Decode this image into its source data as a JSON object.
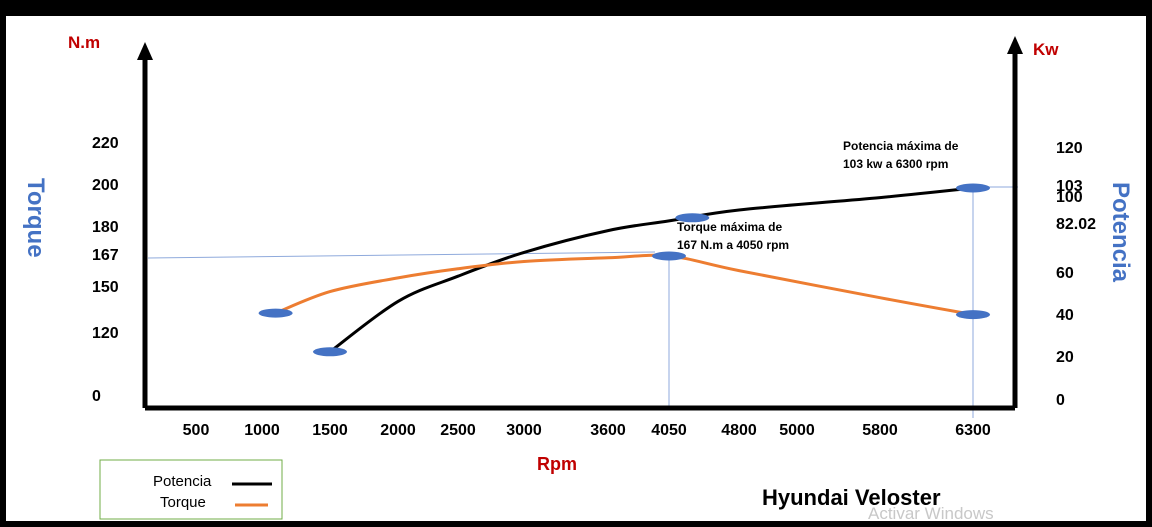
{
  "chart_data": {
    "type": "line",
    "title": "Hyundai Veloster",
    "xlabel": "Rpm",
    "y_left_unit": "N.m",
    "y_right_unit": "Kw",
    "y_left_label": "Torque",
    "y_right_label": "Potencia",
    "x_tick_labels": [
      "500",
      "1000",
      "1500",
      "2000",
      "2500",
      "3000",
      "3600",
      "4050",
      "4800",
      "5000",
      "5800",
      "6300"
    ],
    "y_left_tick_labels": [
      "0",
      "120",
      "150",
      "167",
      "180",
      "200",
      "220"
    ],
    "y_right_tick_labels": [
      "0",
      "20",
      "40",
      "60",
      "82.02",
      "100",
      "103",
      "120"
    ],
    "series": [
      {
        "name": "Potencia",
        "axis": "right",
        "color": "#000000",
        "x": [
          1500,
          2000,
          2500,
          3000,
          3600,
          4050,
          4800,
          5800,
          6300
        ],
        "y": [
          22,
          46,
          58,
          69,
          79,
          84,
          91,
          99,
          103
        ]
      },
      {
        "name": "Torque",
        "axis": "left",
        "color": "#ED7D31",
        "x": [
          1100,
          1500,
          2000,
          2500,
          3000,
          3600,
          4050,
          4800,
          5800,
          6300
        ],
        "y": [
          133,
          147,
          155,
          160,
          164,
          166,
          167,
          159,
          143,
          132
        ]
      }
    ],
    "markers": [
      {
        "series": "Torque",
        "x": 1100,
        "y": 133
      },
      {
        "series": "Potencia",
        "x": 1500,
        "y": 22
      },
      {
        "series": "Potencia",
        "x": 4300,
        "y": 86
      },
      {
        "series": "Torque",
        "x": 4050,
        "y": 167
      },
      {
        "series": "Potencia",
        "x": 6300,
        "y": 103
      },
      {
        "series": "Torque",
        "x": 6300,
        "y": 132
      }
    ],
    "annotations": [
      {
        "lines": [
          "Potencia máxima de",
          "103  kw a 6300 rpm"
        ]
      },
      {
        "lines": [
          "Torque máxima de",
          "167 N.m a 4050 rpm"
        ]
      }
    ],
    "legend": {
      "position": "bottom-left",
      "entries": [
        "Potencia",
        "Torque"
      ]
    },
    "watermark": "Activar Windows",
    "colors": {
      "axis": "#000000",
      "unit": "#C00000",
      "side_label": "#4472C4",
      "marker": "#4472C4",
      "guide": "#8FAADC"
    }
  }
}
